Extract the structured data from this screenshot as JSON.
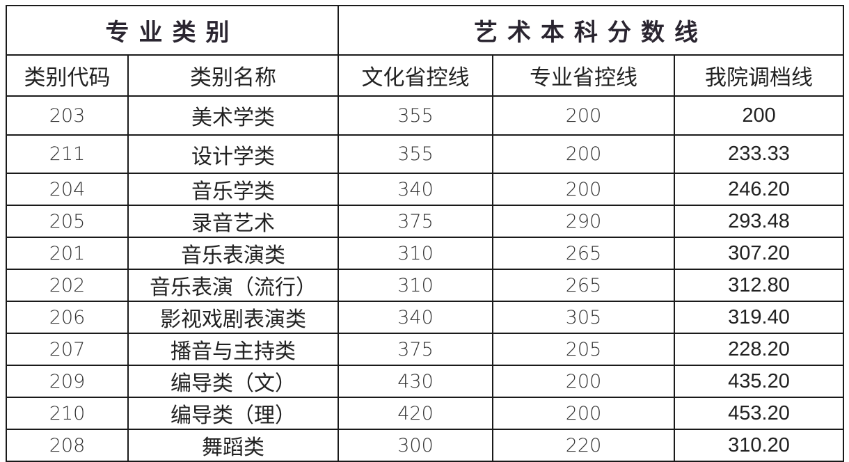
{
  "header": {
    "group_left": "专业类别",
    "group_right": "艺术本科分数线",
    "columns": [
      "类别代码",
      "类别名称",
      "文化省控线",
      "专业省控线",
      "我院调档线"
    ]
  },
  "rows": [
    {
      "code": "203",
      "name": "美术学类",
      "culture": "355",
      "major": "200",
      "adjust": "200"
    },
    {
      "code": "211",
      "name": "设计学类",
      "culture": "355",
      "major": "200",
      "adjust": "233.33"
    },
    {
      "code": "204",
      "name": "音乐学类",
      "culture": "340",
      "major": "200",
      "adjust": "246.20"
    },
    {
      "code": "205",
      "name": "录音艺术",
      "culture": "375",
      "major": "290",
      "adjust": "293.48"
    },
    {
      "code": "201",
      "name": "音乐表演类",
      "culture": "310",
      "major": "265",
      "adjust": "307.20"
    },
    {
      "code": "202",
      "name": "音乐表演（流行）",
      "culture": "310",
      "major": "265",
      "adjust": "312.80"
    },
    {
      "code": "206",
      "name": "影视戏剧表演类",
      "culture": "340",
      "major": "305",
      "adjust": "319.40"
    },
    {
      "code": "207",
      "name": "播音与主持类",
      "culture": "375",
      "major": "205",
      "adjust": "228.20"
    },
    {
      "code": "209",
      "name": "编导类（文）",
      "culture": "430",
      "major": "200",
      "adjust": "435.20"
    },
    {
      "code": "210",
      "name": "编导类（理）",
      "culture": "420",
      "major": "200",
      "adjust": "453.20"
    },
    {
      "code": "208",
      "name": "舞蹈类",
      "culture": "300",
      "major": "220",
      "adjust": "310.20"
    }
  ]
}
